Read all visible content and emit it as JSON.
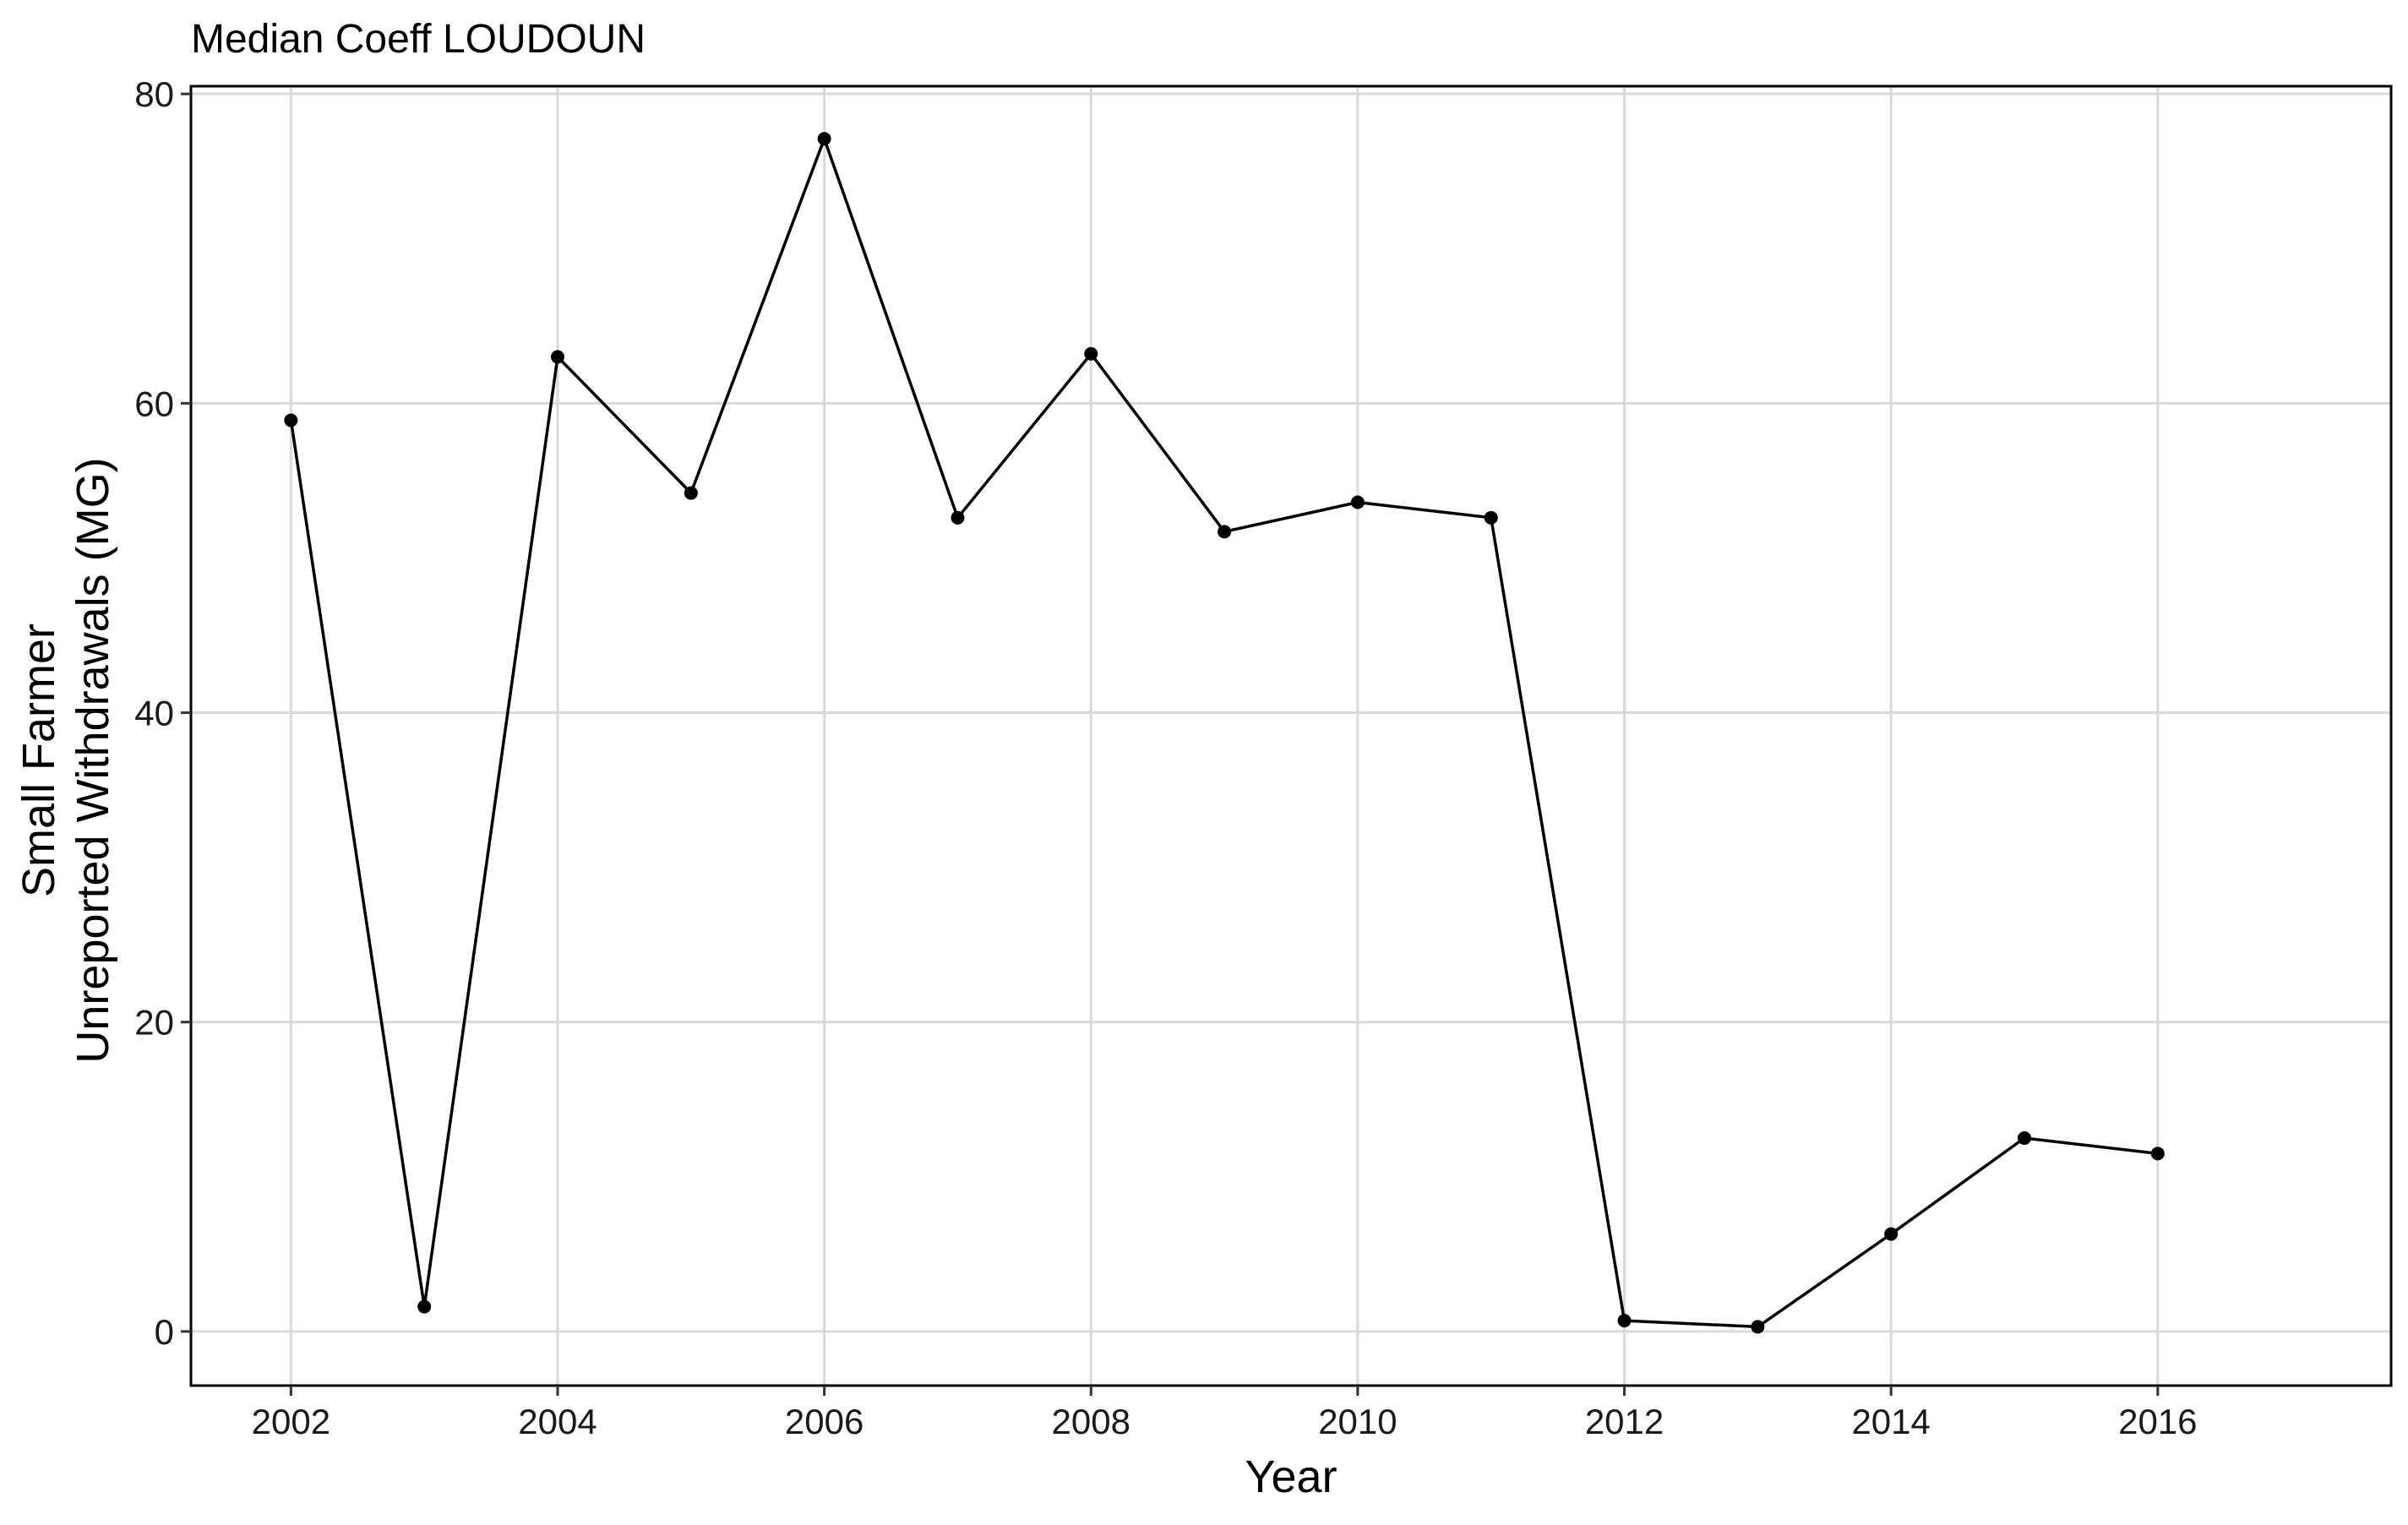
{
  "chart_data": {
    "type": "line",
    "title": "Median Coeff LOUDOUN",
    "xlabel": "Year",
    "ylabel_lines": [
      "Small Farmer",
      "Unreported Withdrawals (MG)"
    ],
    "xlim": [
      2001.25,
      2017.75
    ],
    "ylim": [
      -3.5,
      80.5
    ],
    "x_ticks": [
      2002,
      2004,
      2006,
      2008,
      2010,
      2012,
      2014,
      2016
    ],
    "x_tick_labels": [
      "2002",
      "2004",
      "2006",
      "2008",
      "2010",
      "2012",
      "2014",
      "2016"
    ],
    "y_ticks": [
      0,
      20,
      40,
      60,
      80
    ],
    "y_tick_labels": [
      "0",
      "20",
      "40",
      "60",
      "80"
    ],
    "grid": true,
    "legend": "none",
    "series": [
      {
        "x": [
          2002,
          2003,
          2004,
          2005,
          2006,
          2007,
          2008,
          2009,
          2010,
          2011,
          2012,
          2013,
          2014,
          2015,
          2016
        ],
        "values": [
          58.9,
          1.6,
          63.0,
          54.2,
          77.1,
          52.6,
          63.2,
          51.7,
          53.6,
          52.6,
          0.7,
          0.3,
          6.3,
          12.5,
          11.5
        ]
      }
    ],
    "colors": {
      "line": "#000000",
      "grid": "#d9d9d9",
      "axis": "#000000",
      "background": "#ffffff"
    }
  }
}
